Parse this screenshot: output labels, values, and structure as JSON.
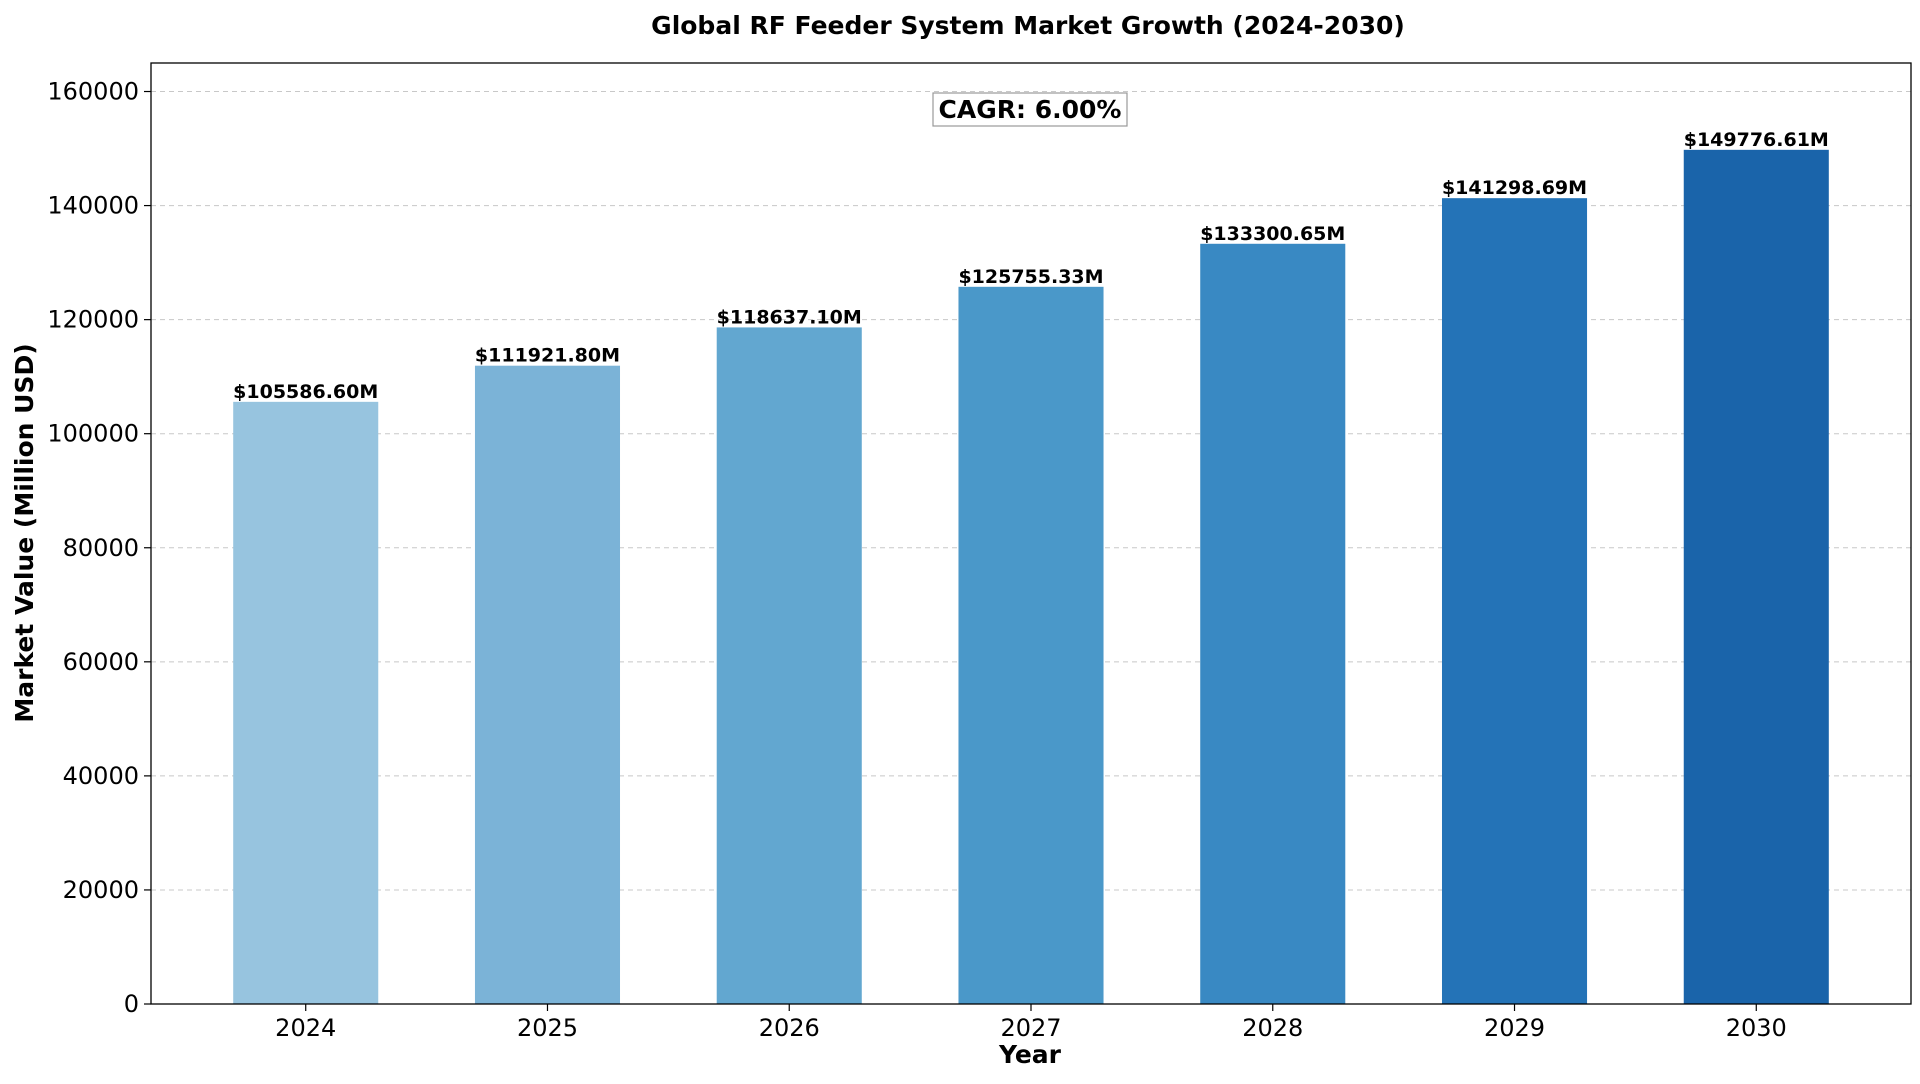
{
  "chart_data": {
    "type": "bar",
    "title": "Global RF Feeder System Market Growth (2024-2030)",
    "xlabel": "Year",
    "ylabel": "Market Value (Million USD)",
    "categories": [
      "2024",
      "2025",
      "2026",
      "2027",
      "2028",
      "2029",
      "2030"
    ],
    "values": [
      105586.6,
      111921.8,
      118637.1,
      125755.33,
      133300.65,
      141298.69,
      149776.61
    ],
    "value_labels": [
      "$105586.60M",
      "$111921.80M",
      "$118637.10M",
      "$125755.33M",
      "$133300.65M",
      "$141298.69M",
      "$149776.61M"
    ],
    "bar_colors": [
      "#97c4df",
      "#7bb3d7",
      "#62a7d0",
      "#4a98c9",
      "#3989c3",
      "#2473b7",
      "#1a64aa"
    ],
    "ylim": [
      0,
      165000
    ],
    "yticks": [
      0,
      20000,
      40000,
      60000,
      80000,
      100000,
      120000,
      140000,
      160000
    ],
    "grid": true,
    "annotation": "CAGR: 6.00%"
  }
}
